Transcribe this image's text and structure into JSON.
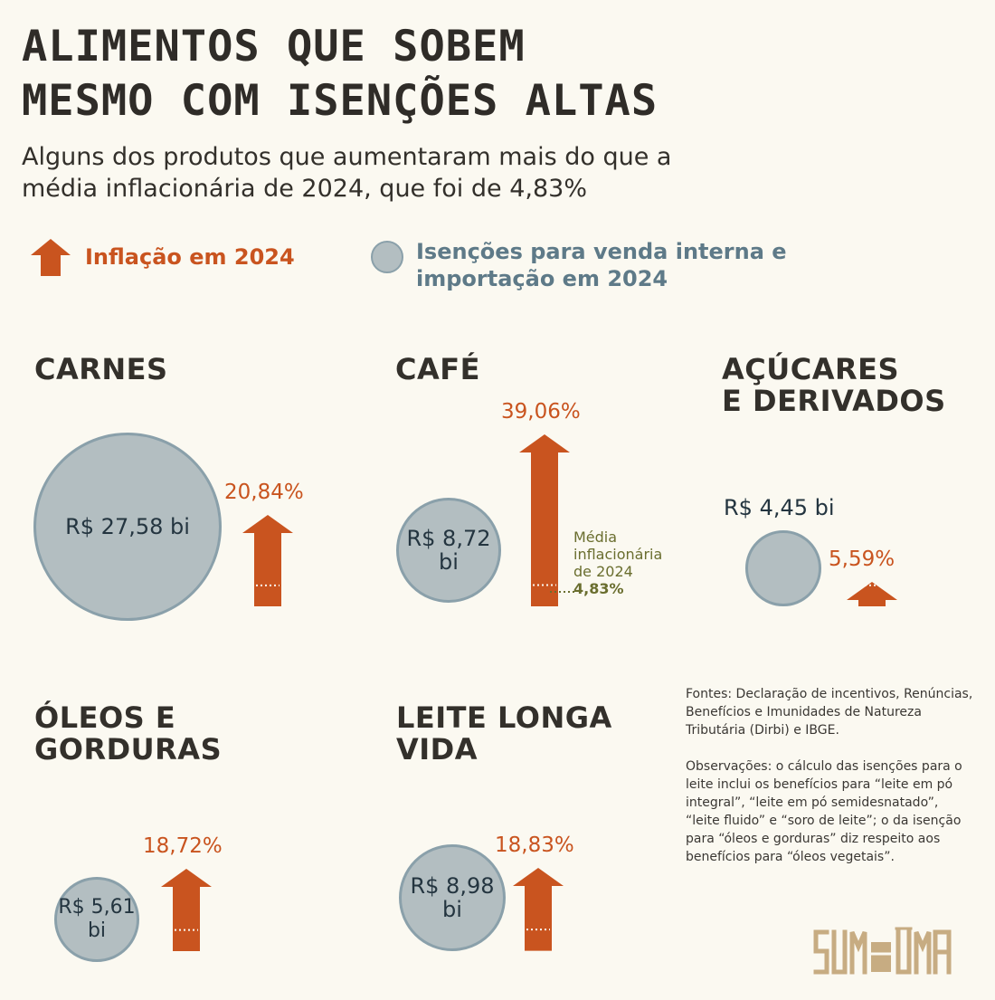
{
  "header": {
    "title_line1": "ALIMENTOS QUE SOBEM",
    "title_line2": "MESMO COM ISENÇÕES ALTAS",
    "subtitle_line1": "Alguns dos produtos que aumentaram mais do que a",
    "subtitle_line2": "média inflacionária de 2024, que foi de 4,83%"
  },
  "legend": {
    "inflation_label": "Inflação em 2024",
    "exemption_label_line1": "Isenções para venda interna e",
    "exemption_label_line2": "importação em 2024",
    "inflation_color": "#c9541f",
    "exemption_color": "#b3bec1"
  },
  "chart_data": {
    "type": "bubble-arrow",
    "average_inflation": {
      "value": 4.83,
      "label_line1": "Média",
      "label_line2": "inflacionária",
      "label_line3": "de 2024",
      "value_label": "4,83%"
    },
    "categories": [
      {
        "title_line1": "CARNES",
        "title_line2": "",
        "exemption_bi": 27.58,
        "exemption_line1": "R$ 27,58 bi",
        "exemption_line2": "",
        "inflation": 20.84,
        "inflation_label": "20,84%"
      },
      {
        "title_line1": "CAFÉ",
        "title_line2": "",
        "exemption_bi": 8.72,
        "exemption_line1": "R$ 8,72",
        "exemption_line2": "bi",
        "inflation": 39.06,
        "inflation_label": "39,06%"
      },
      {
        "title_line1": "AÇÚCARES",
        "title_line2": "E DERIVADOS",
        "exemption_bi": 4.45,
        "exemption_line1": "R$ 4,45 bi",
        "exemption_line2": "",
        "inflation": 5.59,
        "inflation_label": "5,59%"
      },
      {
        "title_line1": "ÓLEOS E",
        "title_line2": "GORDURAS",
        "exemption_bi": 5.61,
        "exemption_line1": "R$ 5,61",
        "exemption_line2": "bi",
        "inflation": 18.72,
        "inflation_label": "18,72%"
      },
      {
        "title_line1": "LEITE LONGA",
        "title_line2": "VIDA",
        "exemption_bi": 8.98,
        "exemption_line1": "R$ 8,98",
        "exemption_line2": "bi",
        "inflation": 18.83,
        "inflation_label": "18,83%"
      }
    ]
  },
  "notes": {
    "sources": "Fontes: Declaração de incentivos, Renúncias, Benefícios e Imunidades de Natureza Tributária (Dirbi) e IBGE.",
    "observations": "Observações: o cálculo das isenções para o leite inclui os benefícios para “leite em pó integral”, “leite em pó semidesnatado”, “leite fluido” e “soro de leite”; o da isenção para “óleos e gorduras” diz respeito aos benefícios para “óleos vegetais”."
  },
  "logo": {
    "text": "SUMAÚMA",
    "color": "#c7ac82"
  }
}
